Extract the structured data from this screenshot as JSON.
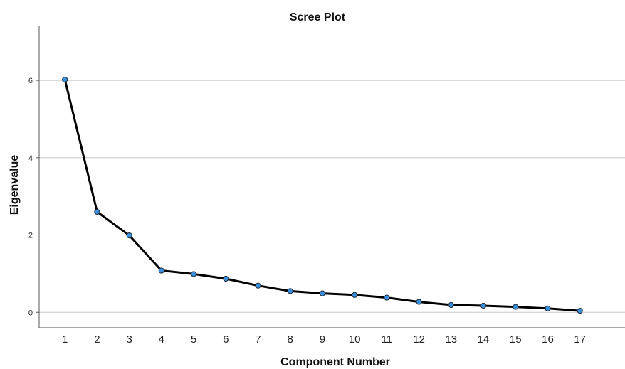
{
  "chart_data": {
    "type": "line",
    "title": "Scree Plot",
    "xlabel": "Component Number",
    "ylabel": "Eigenvalue",
    "x": [
      1,
      2,
      3,
      4,
      5,
      6,
      7,
      8,
      9,
      10,
      11,
      12,
      13,
      14,
      15,
      16,
      17
    ],
    "y": [
      6.02,
      2.6,
      1.99,
      1.08,
      0.99,
      0.87,
      0.69,
      0.55,
      0.49,
      0.45,
      0.38,
      0.27,
      0.19,
      0.17,
      0.14,
      0.1,
      0.04
    ],
    "yticks": [
      "0",
      "2",
      "4",
      "6"
    ],
    "xticks": [
      "1",
      "2",
      "3",
      "4",
      "5",
      "6",
      "7",
      "8",
      "9",
      "10",
      "11",
      "12",
      "13",
      "14",
      "15",
      "16",
      "17"
    ],
    "ylim": [
      -0.4,
      7.4
    ],
    "xlim": [
      0.2,
      18.4
    ],
    "grid": "horizontal",
    "colors": {
      "line": "#000000",
      "marker_fill": "#3a8fd8",
      "gridline": "#c8c8c8"
    }
  }
}
